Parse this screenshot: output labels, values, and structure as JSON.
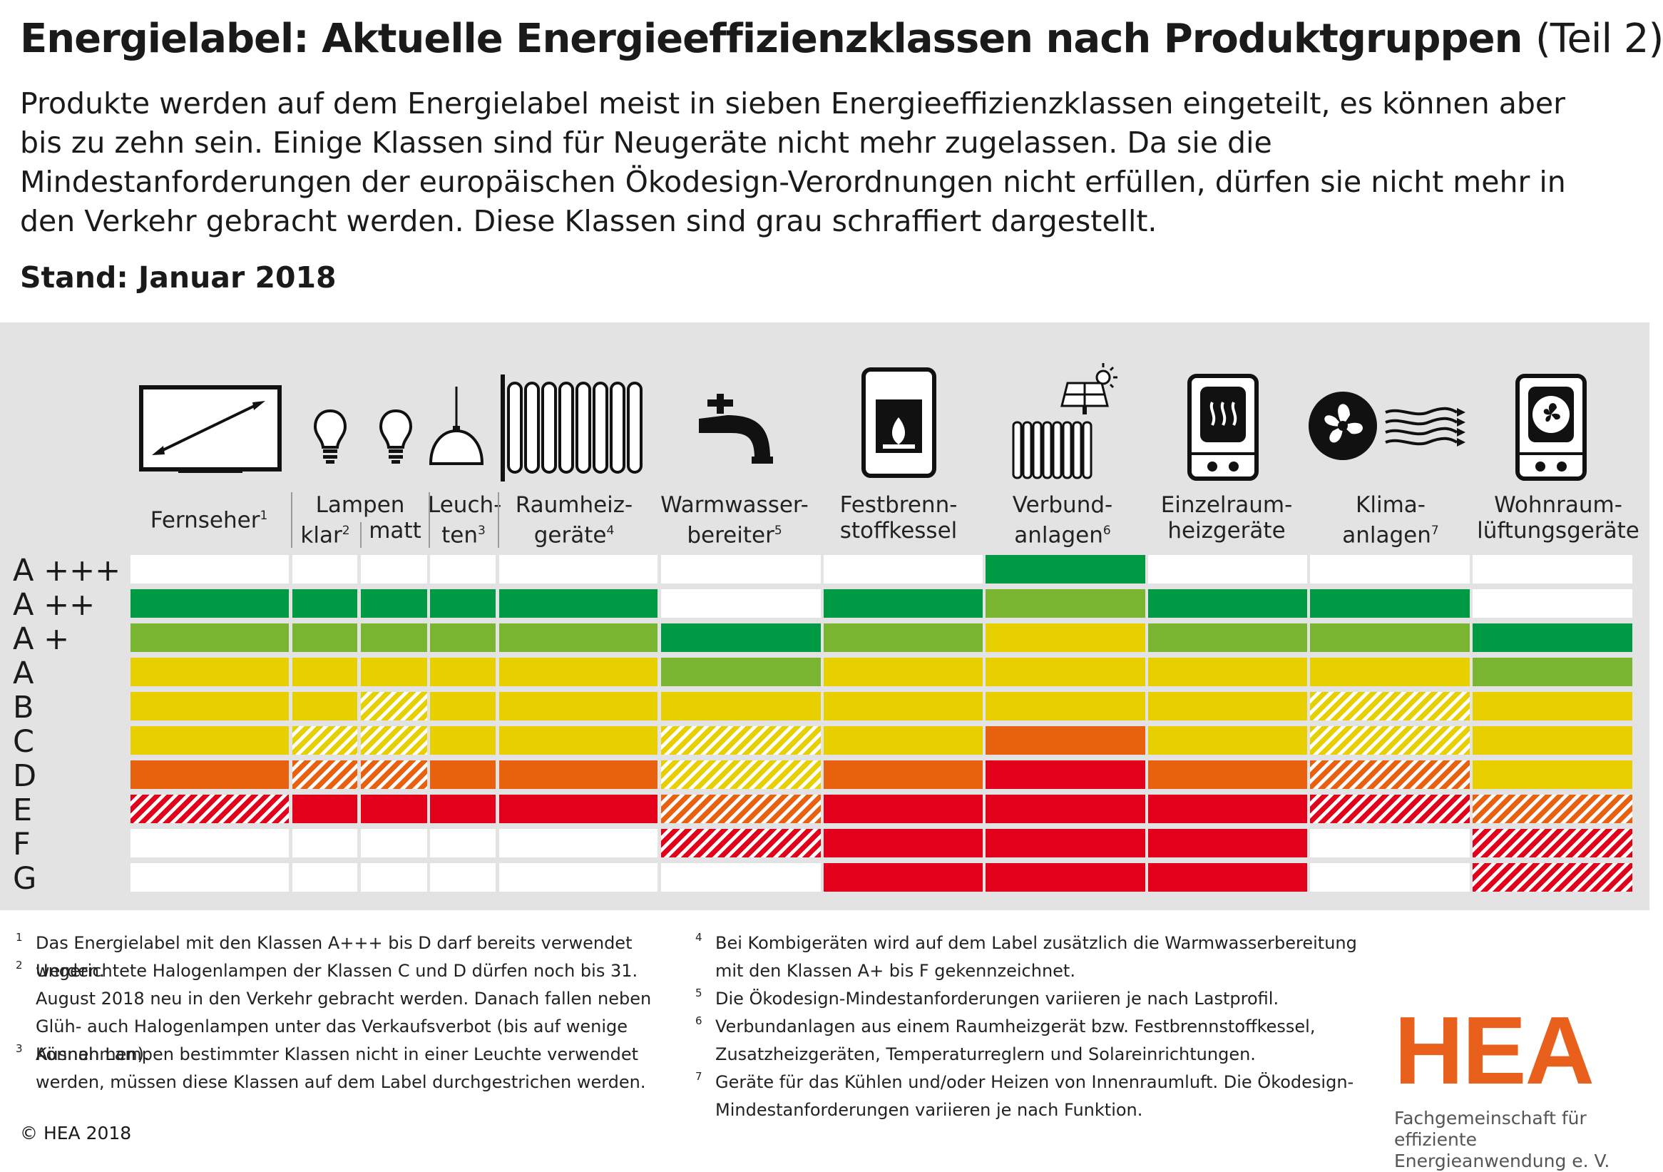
{
  "title_bold": "Energielabel: Aktuelle Energieeffizienzklassen nach Produktgruppen",
  "title_thin": "(Teil 2)",
  "subtitle": "Produkte werden auf dem Energielabel meist in sieben Energieeffizienzklassen eingeteilt, es können aber bis zu zehn sein. Einige Klassen sind für Neugeräte nicht mehr zugelassen. Da sie die Mindestanforderungen der europäischen Ökodesign-Verordnungen nicht erfüllen, dürfen sie nicht mehr in den Verkehr gebracht werden. Diese Klassen sind grau schraffiert dargestellt.",
  "stand": "Stand: Januar 2018",
  "colors": {
    "dark_green": "#009a44",
    "light_green": "#79b530",
    "yellow": "#e8cf00",
    "orange": "#e8610f",
    "red": "#e2001a",
    "white": "#ffffff",
    "hatch": "#ffffff"
  },
  "chart_data": {
    "type": "table",
    "grades": [
      "A +++",
      "A ++",
      "A +",
      "A",
      "B",
      "C",
      "D",
      "E",
      "F",
      "G"
    ],
    "columns": [
      {
        "label": "Fernseher",
        "sup": "1",
        "sub": "",
        "cells": [
          "white",
          "dark_green",
          "light_green",
          "yellow",
          "yellow",
          "yellow",
          "orange",
          "red-hatch",
          "white",
          "white"
        ]
      },
      {
        "label": "klar",
        "sup": "2",
        "sub": "Lampen",
        "cells": [
          "white",
          "dark_green",
          "light_green",
          "yellow",
          "yellow",
          "yellow-hatch",
          "orange-hatch",
          "red",
          "white",
          "white"
        ]
      },
      {
        "label": "matt",
        "sup": "",
        "sub": "",
        "cells": [
          "white",
          "dark_green",
          "light_green",
          "yellow",
          "yellow-hatch",
          "yellow-hatch",
          "orange-hatch",
          "red",
          "white",
          "white"
        ]
      },
      {
        "label": "Leuch-ten",
        "sup": "3",
        "sub": "",
        "cells": [
          "white",
          "dark_green",
          "light_green",
          "yellow",
          "yellow",
          "yellow",
          "orange",
          "red",
          "white",
          "white"
        ]
      },
      {
        "label": "Raumheiz-geräte",
        "sup": "4",
        "sub": "",
        "cells": [
          "white",
          "dark_green",
          "light_green",
          "yellow",
          "yellow",
          "yellow",
          "orange",
          "red",
          "white",
          "white"
        ]
      },
      {
        "label": "Warmwasser-bereiter",
        "sup": "5",
        "sub": "",
        "cells": [
          "white",
          "white",
          "dark_green",
          "light_green",
          "yellow",
          "yellow-hatch",
          "yellow-hatch",
          "orange-hatch",
          "red-hatch",
          "white"
        ]
      },
      {
        "label": "Festbrenn-stoffkessel",
        "sup": "",
        "sub": "",
        "cells": [
          "white",
          "dark_green",
          "light_green",
          "yellow",
          "yellow",
          "yellow",
          "orange",
          "red",
          "red",
          "red"
        ]
      },
      {
        "label": "Verbund-anlagen",
        "sup": "6",
        "sub": "",
        "cells": [
          "dark_green",
          "light_green",
          "yellow",
          "yellow",
          "yellow",
          "orange",
          "red",
          "red",
          "red",
          "red"
        ]
      },
      {
        "label": "Einzelraum-heizgeräte",
        "sup": "",
        "sub": "",
        "cells": [
          "white",
          "dark_green",
          "light_green",
          "yellow",
          "yellow",
          "yellow",
          "orange",
          "red",
          "red",
          "red"
        ]
      },
      {
        "label": "Klima-anlagen",
        "sup": "7",
        "sub": "",
        "cells": [
          "white",
          "dark_green",
          "light_green",
          "yellow",
          "yellow-hatch",
          "yellow-hatch",
          "orange-hatch",
          "red-hatch",
          "white",
          "white"
        ]
      },
      {
        "label": "Wohnraum-lüftungsgeräte",
        "sup": "",
        "sub": "",
        "cells": [
          "white",
          "white",
          "dark_green",
          "light_green",
          "yellow",
          "yellow",
          "yellow",
          "orange-hatch",
          "red-hatch",
          "red-hatch"
        ]
      }
    ]
  },
  "footnotes_left": [
    {
      "n": "1",
      "text": "Das Energielabel mit den Klassen A+++ bis D darf bereits verwendet werden."
    },
    {
      "n": "2",
      "text": "Ungerichtete Halogenlampen der Klassen C und D dürfen noch bis 31. August 2018 neu in den Verkehr gebracht werden. Danach fallen neben Glüh- auch Halogenlampen unter das Verkaufsverbot (bis auf wenige Ausnahmen)."
    },
    {
      "n": "3",
      "text": "Können Lampen bestimmter Klassen nicht in einer Leuchte verwendet werden, müssen diese Klassen auf dem Label durchgestrichen werden."
    }
  ],
  "footnotes_right": [
    {
      "n": "4",
      "text": "Bei Kombigeräten wird auf dem Label zusätzlich die Warmwasserbereitung mit den Klassen A+ bis F gekennzeichnet."
    },
    {
      "n": "5",
      "text": "Die Ökodesign-Mindestanforderungen variieren je nach Lastprofil."
    },
    {
      "n": "6",
      "text": "Verbundanlagen aus einem Raumheizgerät bzw. Festbrennstoffkessel, Zusatzheizgeräten, Temperaturreglern und Solareinrichtungen."
    },
    {
      "n": "7",
      "text": "Geräte für das Kühlen und/oder Heizen von Innenraumluft. Die Ökodesign-Mindestanforderungen variieren je nach Funktion."
    }
  ],
  "copyright": "© HEA 2018",
  "logo_text": "HEA",
  "logo_sub1": "Fachgemeinschaft für",
  "logo_sub2": "effiziente Energieanwendung e. V.",
  "icons": [
    "tv-icon",
    "bulb-clear-icon",
    "bulb-matt-icon",
    "pendant-lamp-icon",
    "radiator-icon",
    "faucet-icon",
    "stove-icon",
    "radiator-solar-icon",
    "heater-icon",
    "fan-icon",
    "ventilation-icon"
  ]
}
